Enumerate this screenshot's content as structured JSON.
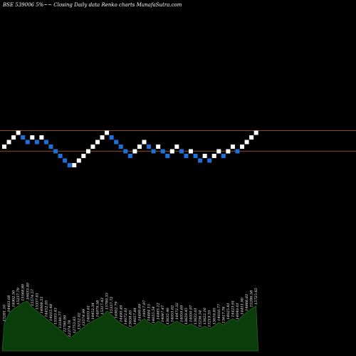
{
  "chart_data": {
    "type": "renko",
    "title": "BSE 539006  5%~~  Closing Daily data  Renko  charts MunafaSutra.com",
    "colors": {
      "background": "#000000",
      "up_brick": "#ffffff",
      "down_brick": "#1e6fdc",
      "reference_line": "#c06a22",
      "volume_fill": "#0b3d0b",
      "volume_stroke": "#2f7a2f"
    },
    "bricks": [
      {
        "level": 0,
        "dir": "up"
      },
      {
        "level": 1,
        "dir": "up"
      },
      {
        "level": 2,
        "dir": "up"
      },
      {
        "level": 3,
        "dir": "up"
      },
      {
        "level": 2,
        "dir": "down"
      },
      {
        "level": 1,
        "dir": "down"
      },
      {
        "level": 2,
        "dir": "up"
      },
      {
        "level": 1,
        "dir": "down"
      },
      {
        "level": 2,
        "dir": "up"
      },
      {
        "level": 1,
        "dir": "down"
      },
      {
        "level": 0,
        "dir": "down"
      },
      {
        "level": -1,
        "dir": "down"
      },
      {
        "level": -2,
        "dir": "down"
      },
      {
        "level": -3,
        "dir": "down"
      },
      {
        "level": -4,
        "dir": "down"
      },
      {
        "level": -4,
        "dir": "up"
      },
      {
        "level": -3,
        "dir": "up"
      },
      {
        "level": -2,
        "dir": "up"
      },
      {
        "level": -1,
        "dir": "up"
      },
      {
        "level": 0,
        "dir": "up"
      },
      {
        "level": 1,
        "dir": "up"
      },
      {
        "level": 2,
        "dir": "up"
      },
      {
        "level": 3,
        "dir": "up"
      },
      {
        "level": 2,
        "dir": "down"
      },
      {
        "level": 1,
        "dir": "down"
      },
      {
        "level": 0,
        "dir": "down"
      },
      {
        "level": -1,
        "dir": "down"
      },
      {
        "level": -2,
        "dir": "down"
      },
      {
        "level": -1,
        "dir": "up"
      },
      {
        "level": 0,
        "dir": "up"
      },
      {
        "level": 1,
        "dir": "up"
      },
      {
        "level": 0,
        "dir": "down"
      },
      {
        "level": -1,
        "dir": "down"
      },
      {
        "level": 0,
        "dir": "up"
      },
      {
        "level": -1,
        "dir": "down"
      },
      {
        "level": -2,
        "dir": "down"
      },
      {
        "level": -1,
        "dir": "up"
      },
      {
        "level": 0,
        "dir": "up"
      },
      {
        "level": -1,
        "dir": "down"
      },
      {
        "level": -2,
        "dir": "down"
      },
      {
        "level": -1,
        "dir": "up"
      },
      {
        "level": -2,
        "dir": "down"
      },
      {
        "level": -3,
        "dir": "down"
      },
      {
        "level": -2,
        "dir": "up"
      },
      {
        "level": -3,
        "dir": "down"
      },
      {
        "level": -2,
        "dir": "up"
      },
      {
        "level": -1,
        "dir": "up"
      },
      {
        "level": -2,
        "dir": "down"
      },
      {
        "level": -1,
        "dir": "up"
      },
      {
        "level": 0,
        "dir": "up"
      },
      {
        "level": -1,
        "dir": "down"
      },
      {
        "level": 0,
        "dir": "up"
      },
      {
        "level": 1,
        "dir": "up"
      },
      {
        "level": 2,
        "dir": "up"
      },
      {
        "level": 3,
        "dir": "up"
      }
    ],
    "reference_lines_level": [
      3,
      -0.5
    ],
    "volume_labels": [
      "13281.10",
      "14403.08",
      "14902.50",
      "15237.79",
      "15568.80",
      "16033.40",
      "15574.57",
      "15337.61",
      "14908.55",
      "14452.95",
      "14015.48",
      "13593.43",
      "13180.77",
      "12780.99",
      "12374.78",
      "12753.65",
      "13152.02",
      "13574.99",
      "14035.61",
      "14452.34",
      "14879.58",
      "15317.43",
      "15780.33",
      "15337.72",
      "14902.79",
      "14490.49",
      "14072.61",
      "13638.85",
      "14057.84",
      "14499.69",
      "14917.97",
      "14484.15",
      "14055.54",
      "14485.12",
      "14047.47",
      "13635.46",
      "14055.02",
      "14472.32",
      "14059.69",
      "13629.45",
      "14050.97",
      "13632.01",
      "13236.54",
      "13622.16",
      "13219.33",
      "13616.85",
      "14010.77",
      "13617.76",
      "14025.81",
      "14423.91",
      "14040.01",
      "14451.90",
      "14866.83",
      "15286.58",
      "15725.65"
    ],
    "volumes": [
      45,
      60,
      68,
      72,
      78,
      80,
      70,
      64,
      58,
      52,
      46,
      40,
      34,
      28,
      20,
      26,
      32,
      38,
      44,
      48,
      52,
      56,
      64,
      58,
      50,
      44,
      40,
      36,
      40,
      46,
      52,
      46,
      42,
      48,
      44,
      40,
      44,
      48,
      44,
      40,
      44,
      40,
      36,
      40,
      36,
      40,
      46,
      42,
      48,
      52,
      48,
      56,
      62,
      68,
      72
    ]
  }
}
